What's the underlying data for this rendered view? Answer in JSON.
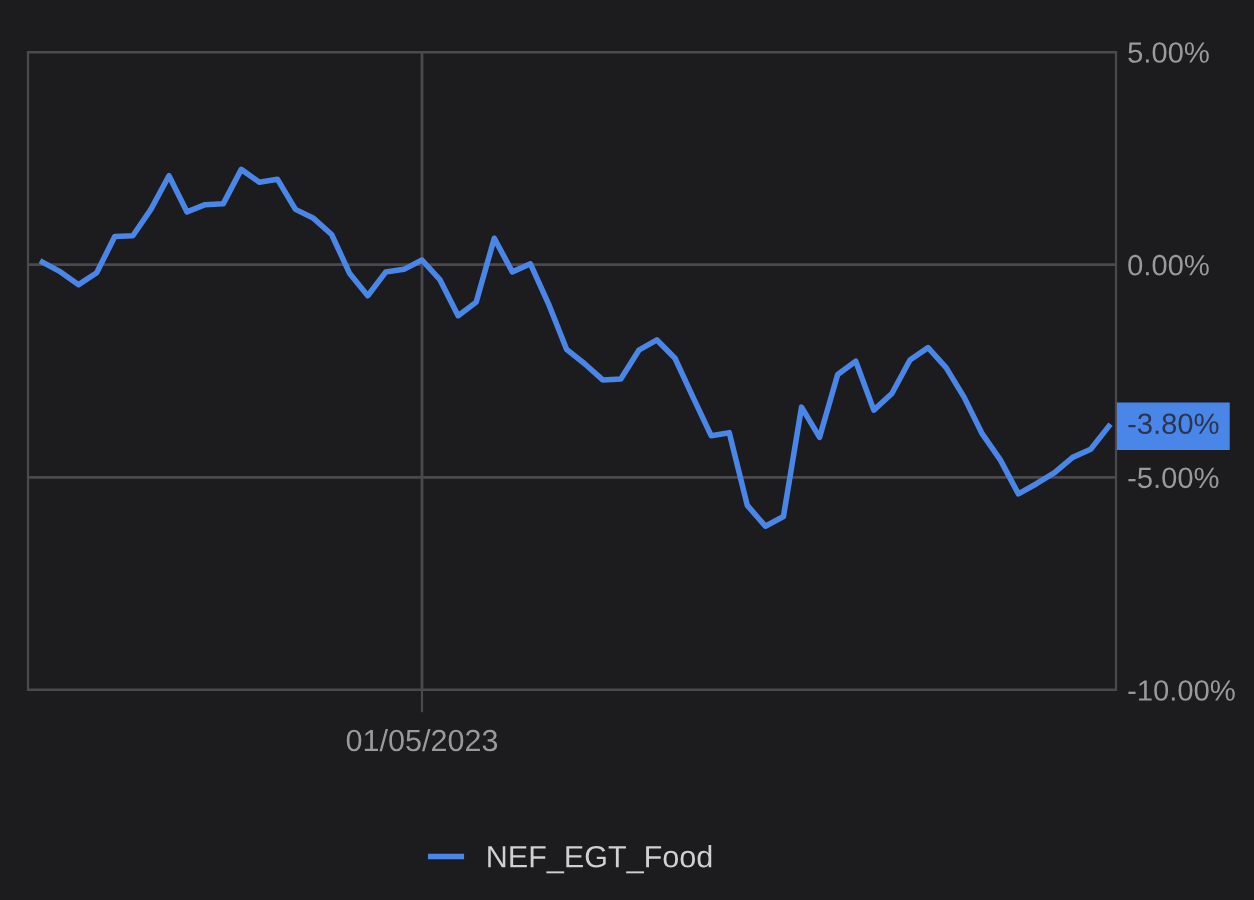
{
  "chart_data": {
    "type": "line",
    "categories": [
      null,
      null,
      null,
      null,
      null,
      null,
      null,
      null,
      null,
      null,
      null,
      null,
      null,
      null,
      null,
      null,
      null,
      null,
      null,
      null,
      null,
      "01/05/2023",
      null,
      null,
      null,
      null,
      null,
      null,
      null,
      null,
      null,
      null,
      null,
      null,
      null,
      null,
      null,
      null,
      null,
      null,
      null,
      null,
      null,
      null,
      null,
      null,
      null,
      null,
      null,
      null,
      null,
      null,
      null,
      null,
      null,
      null,
      null,
      null,
      null,
      null
    ],
    "series": [
      {
        "name": "NEF_EGT_Food",
        "color": "#4a86e8",
        "values": [
          0.06,
          -0.17,
          -0.47,
          -0.19,
          0.66,
          0.68,
          1.3,
          2.09,
          1.24,
          1.41,
          1.43,
          2.24,
          1.94,
          2.01,
          1.3,
          1.09,
          0.71,
          -0.21,
          -0.73,
          -0.17,
          -0.11,
          0.11,
          -0.36,
          -1.2,
          -0.88,
          0.62,
          -0.17,
          0.02,
          -0.92,
          -1.99,
          -2.33,
          -2.71,
          -2.69,
          -2.01,
          -1.77,
          -2.2,
          -3.12,
          -4.02,
          -3.95,
          -5.66,
          -6.15,
          -5.92,
          -3.35,
          -4.06,
          -2.58,
          -2.27,
          -3.42,
          -3.03,
          -2.24,
          -1.95,
          -2.42,
          -3.12,
          -3.98,
          -4.59,
          -5.39,
          -5.15,
          -4.89,
          -4.53,
          -4.34,
          -3.8
        ]
      }
    ],
    "ylim": [
      -10,
      5
    ],
    "yticks": [
      {
        "value": 5,
        "label": "5.00%"
      },
      {
        "value": 0,
        "label": "0.00%"
      },
      {
        "value": -5,
        "label": "-5.00%"
      },
      {
        "value": -10,
        "label": "-10.00%"
      }
    ],
    "annotations": [
      "-3.80%"
    ],
    "grid": true,
    "legend": "bottom",
    "marker": "none",
    "line_style": "solid"
  }
}
